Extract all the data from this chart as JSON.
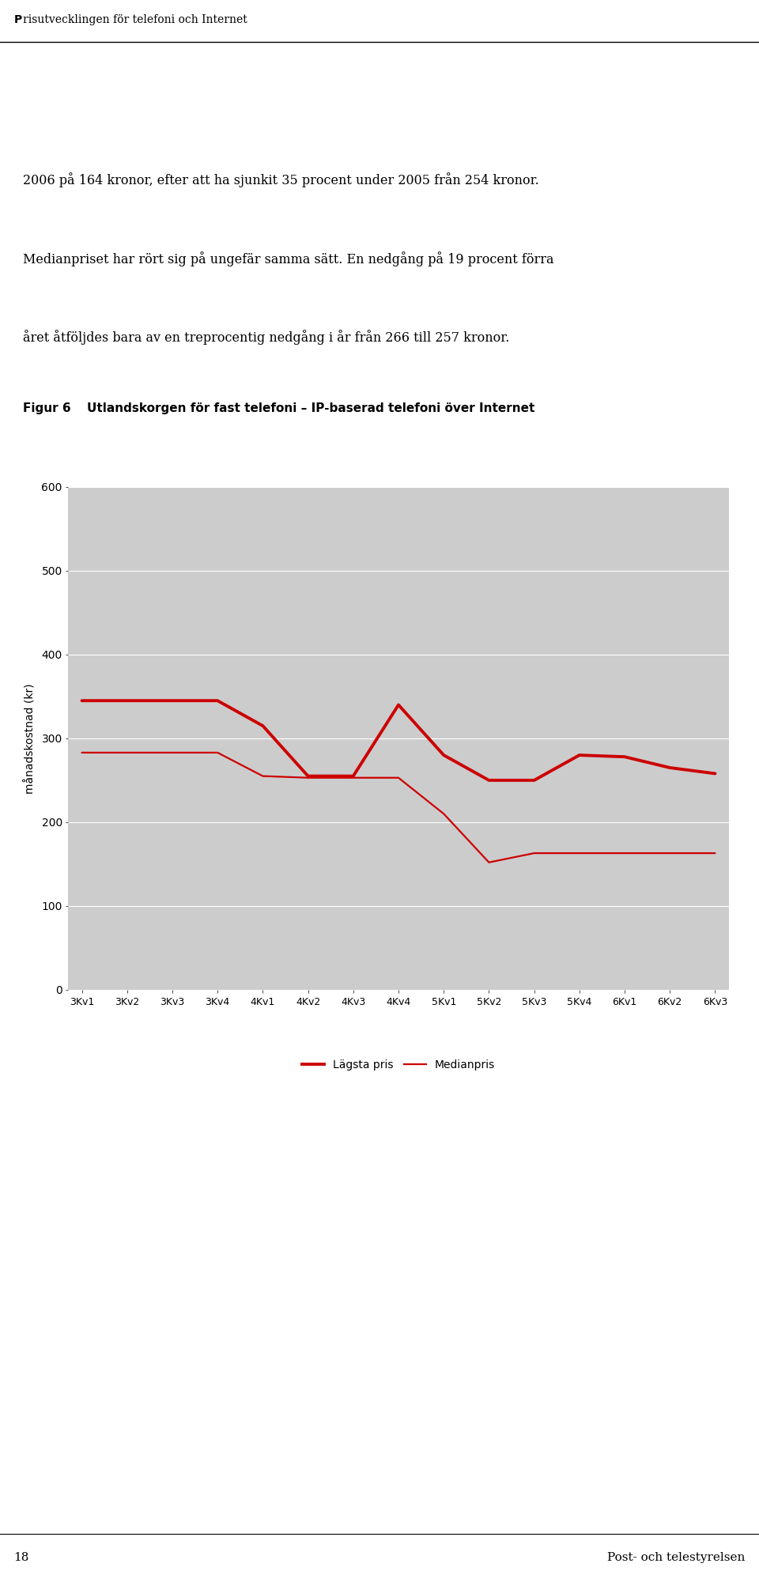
{
  "title_label": "Figur 6",
  "title_text": "Utlandskorgen för fast telefoni – IP-baserad telefoni över Internet",
  "header_text": "Prisutvecklingen för telefoni och Internet",
  "body_text_line1": "2006 på 164 kronor, efter att ha sjunkit 35 procent under 2005 från 254 kronor.",
  "body_text_line2": "Medianpriset har rört sig på ungefär samma sätt. En nedgång på 19 procent förra",
  "body_text_line3": "året åtföljdes bara av en treprocentig nedgång i år från 266 till 257 kronor.",
  "x_labels": [
    "3Kv1",
    "3Kv2",
    "3Kv3",
    "3Kv4",
    "4Kv1",
    "4Kv2",
    "4Kv3",
    "4Kv4",
    "5Kv1",
    "5Kv2",
    "5Kv3",
    "5Kv4",
    "6Kv1",
    "6Kv2",
    "6Kv3"
  ],
  "ylabel": "månadskostnad (kr)",
  "ylim": [
    0,
    600
  ],
  "yticks": [
    0,
    100,
    200,
    300,
    400,
    500,
    600
  ],
  "lagsta_pris": [
    345,
    345,
    345,
    345,
    315,
    255,
    255,
    340,
    280,
    250,
    250,
    280,
    278,
    265,
    258
  ],
  "medianpris": [
    283,
    283,
    283,
    283,
    255,
    253,
    253,
    253,
    210,
    152,
    163,
    163,
    163,
    163,
    163
  ],
  "line_color": "#cc0000",
  "bg_color": "#cccccc",
  "legend_lagsta": "Lägsta pris",
  "legend_median": "Medianpris"
}
